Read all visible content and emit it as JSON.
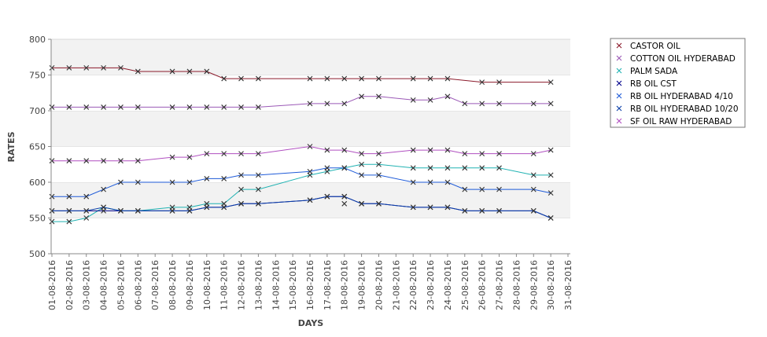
{
  "chart_data": {
    "type": "line",
    "xlabel": "DAYS",
    "ylabel": "RATES",
    "ylim": [
      500,
      800
    ],
    "yticks": [
      500,
      550,
      600,
      650,
      700,
      750,
      800
    ],
    "grid": "alternating horizontal bands",
    "legend_position": "right",
    "x": [
      "01-08-2016",
      "02-08-2016",
      "03-08-2016",
      "04-08-2016",
      "05-08-2016",
      "06-08-2016",
      "07-08-2016",
      "08-08-2016",
      "09-08-2016",
      "10-08-2016",
      "11-08-2016",
      "12-08-2016",
      "13-08-2016",
      "14-08-2016",
      "15-08-2016",
      "16-08-2016",
      "17-08-2016",
      "18-08-2016",
      "19-08-2016",
      "20-08-2016",
      "21-08-2016",
      "22-08-2016",
      "23-08-2016",
      "24-08-2016",
      "25-08-2016",
      "26-08-2016",
      "27-08-2016",
      "28-08-2016",
      "29-08-2016",
      "30-08-2016",
      "31-08-2016"
    ],
    "series": [
      {
        "name": "CASTOR OIL",
        "color": "#8b1a2b",
        "points": [
          [
            "01-08-2016",
            760
          ],
          [
            "02-08-2016",
            760
          ],
          [
            "03-08-2016",
            760
          ],
          [
            "04-08-2016",
            760
          ],
          [
            "05-08-2016",
            760
          ],
          [
            "06-08-2016",
            755
          ],
          [
            "08-08-2016",
            755
          ],
          [
            "09-08-2016",
            755
          ],
          [
            "10-08-2016",
            755
          ],
          [
            "11-08-2016",
            745
          ],
          [
            "12-08-2016",
            745
          ],
          [
            "13-08-2016",
            745
          ],
          [
            "16-08-2016",
            745
          ],
          [
            "17-08-2016",
            745
          ],
          [
            "18-08-2016",
            745
          ],
          [
            "19-08-2016",
            745
          ],
          [
            "20-08-2016",
            745
          ],
          [
            "22-08-2016",
            745
          ],
          [
            "23-08-2016",
            745
          ],
          [
            "24-08-2016",
            745
          ],
          [
            "26-08-2016",
            740
          ],
          [
            "27-08-2016",
            740
          ],
          [
            "30-08-2016",
            740
          ]
        ]
      },
      {
        "name": "COTTON OIL HYDERABAD",
        "color": "#9b59b6",
        "points": [
          [
            "01-08-2016",
            705
          ],
          [
            "02-08-2016",
            705
          ],
          [
            "03-08-2016",
            705
          ],
          [
            "04-08-2016",
            705
          ],
          [
            "05-08-2016",
            705
          ],
          [
            "06-08-2016",
            705
          ],
          [
            "08-08-2016",
            705
          ],
          [
            "09-08-2016",
            705
          ],
          [
            "10-08-2016",
            705
          ],
          [
            "11-08-2016",
            705
          ],
          [
            "12-08-2016",
            705
          ],
          [
            "13-08-2016",
            705
          ],
          [
            "16-08-2016",
            710
          ],
          [
            "17-08-2016",
            710
          ],
          [
            "18-08-2016",
            710
          ],
          [
            "19-08-2016",
            720
          ],
          [
            "20-08-2016",
            720
          ],
          [
            "22-08-2016",
            715
          ],
          [
            "23-08-2016",
            715
          ],
          [
            "24-08-2016",
            720
          ],
          [
            "25-08-2016",
            710
          ],
          [
            "26-08-2016",
            710
          ],
          [
            "27-08-2016",
            710
          ],
          [
            "29-08-2016",
            710
          ],
          [
            "30-08-2016",
            710
          ]
        ]
      },
      {
        "name": "PALM SADA",
        "color": "#20b2b2",
        "points": [
          [
            "01-08-2016",
            545
          ],
          [
            "02-08-2016",
            545
          ],
          [
            "03-08-2016",
            550
          ],
          [
            "04-08-2016",
            565
          ],
          [
            "05-08-2016",
            560
          ],
          [
            "06-08-2016",
            560
          ],
          [
            "08-08-2016",
            565
          ],
          [
            "09-08-2016",
            565
          ],
          [
            "10-08-2016",
            570
          ],
          [
            "11-08-2016",
            570
          ],
          [
            "12-08-2016",
            590
          ],
          [
            "13-08-2016",
            590
          ],
          [
            "16-08-2016",
            610
          ],
          [
            "17-08-2016",
            615
          ],
          [
            "18-08-2016",
            620
          ],
          [
            "19-08-2016",
            625
          ],
          [
            "20-08-2016",
            625
          ],
          [
            "22-08-2016",
            620
          ],
          [
            "23-08-2016",
            620
          ],
          [
            "24-08-2016",
            620
          ],
          [
            "25-08-2016",
            620
          ],
          [
            "26-08-2016",
            620
          ],
          [
            "27-08-2016",
            620
          ],
          [
            "29-08-2016",
            610
          ],
          [
            "30-08-2016",
            610
          ]
        ]
      },
      {
        "name": "RB OIL CST",
        "color": "#00008b",
        "points": [
          [
            "01-08-2016",
            560
          ],
          [
            "02-08-2016",
            560
          ],
          [
            "03-08-2016",
            560
          ],
          [
            "04-08-2016",
            560
          ],
          [
            "05-08-2016",
            560
          ],
          [
            "06-08-2016",
            560
          ],
          [
            "08-08-2016",
            560
          ],
          [
            "09-08-2016",
            560
          ],
          [
            "10-08-2016",
            565
          ],
          [
            "11-08-2016",
            565
          ],
          [
            "12-08-2016",
            570
          ],
          [
            "13-08-2016",
            570
          ],
          [
            "16-08-2016",
            575
          ],
          [
            "17-08-2016",
            580
          ],
          [
            "18-08-2016",
            580
          ],
          [
            "19-08-2016",
            570
          ],
          [
            "20-08-2016",
            570
          ],
          [
            "22-08-2016",
            565
          ],
          [
            "23-08-2016",
            565
          ],
          [
            "24-08-2016",
            565
          ],
          [
            "25-08-2016",
            560
          ],
          [
            "26-08-2016",
            560
          ],
          [
            "27-08-2016",
            560
          ],
          [
            "29-08-2016",
            560
          ],
          [
            "30-08-2016",
            550
          ]
        ]
      },
      {
        "name": "RB OIL HYDERABAD  4/10",
        "color": "#1f5bd8",
        "points": [
          [
            "01-08-2016",
            580
          ],
          [
            "02-08-2016",
            580
          ],
          [
            "03-08-2016",
            580
          ],
          [
            "04-08-2016",
            590
          ],
          [
            "05-08-2016",
            600
          ],
          [
            "06-08-2016",
            600
          ],
          [
            "08-08-2016",
            600
          ],
          [
            "09-08-2016",
            600
          ],
          [
            "10-08-2016",
            605
          ],
          [
            "11-08-2016",
            605
          ],
          [
            "12-08-2016",
            610
          ],
          [
            "13-08-2016",
            610
          ],
          [
            "16-08-2016",
            615
          ],
          [
            "17-08-2016",
            620
          ],
          [
            "18-08-2016",
            620
          ],
          [
            "19-08-2016",
            610
          ],
          [
            "20-08-2016",
            610
          ],
          [
            "22-08-2016",
            600
          ],
          [
            "23-08-2016",
            600
          ],
          [
            "24-08-2016",
            600
          ],
          [
            "25-08-2016",
            590
          ],
          [
            "26-08-2016",
            590
          ],
          [
            "27-08-2016",
            590
          ],
          [
            "29-08-2016",
            590
          ],
          [
            "30-08-2016",
            585
          ]
        ]
      },
      {
        "name": "RB OIL HYDERABAD 10/20",
        "color": "#0b3fa8",
        "points": [
          [
            "01-08-2016",
            560
          ],
          [
            "02-08-2016",
            560
          ],
          [
            "03-08-2016",
            560
          ],
          [
            "04-08-2016",
            565
          ],
          [
            "05-08-2016",
            560
          ],
          [
            "06-08-2016",
            560
          ],
          [
            "08-08-2016",
            560
          ],
          [
            "09-08-2016",
            560
          ],
          [
            "10-08-2016",
            565
          ],
          [
            "11-08-2016",
            565
          ],
          [
            "12-08-2016",
            570
          ],
          [
            "13-08-2016",
            570
          ],
          [
            "16-08-2016",
            575
          ],
          [
            "17-08-2016",
            580
          ],
          [
            "18-08-2016",
            580
          ],
          [
            "19-08-2016",
            570
          ],
          [
            "20-08-2016",
            570
          ],
          [
            "22-08-2016",
            565
          ],
          [
            "23-08-2016",
            565
          ],
          [
            "24-08-2016",
            565
          ],
          [
            "25-08-2016",
            560
          ],
          [
            "26-08-2016",
            560
          ],
          [
            "27-08-2016",
            560
          ],
          [
            "29-08-2016",
            560
          ],
          [
            "30-08-2016",
            550
          ]
        ]
      },
      {
        "name": "SF OIL RAW HYDERABAD",
        "color": "#b04fc0",
        "points": [
          [
            "01-08-2016",
            630
          ],
          [
            "02-08-2016",
            630
          ],
          [
            "03-08-2016",
            630
          ],
          [
            "04-08-2016",
            630
          ],
          [
            "05-08-2016",
            630
          ],
          [
            "06-08-2016",
            630
          ],
          [
            "08-08-2016",
            635
          ],
          [
            "09-08-2016",
            635
          ],
          [
            "10-08-2016",
            640
          ],
          [
            "11-08-2016",
            640
          ],
          [
            "12-08-2016",
            640
          ],
          [
            "13-08-2016",
            640
          ],
          [
            "16-08-2016",
            650
          ],
          [
            "17-08-2016",
            645
          ],
          [
            "18-08-2016",
            645
          ],
          [
            "19-08-2016",
            640
          ],
          [
            "20-08-2016",
            640
          ],
          [
            "22-08-2016",
            645
          ],
          [
            "23-08-2016",
            645
          ],
          [
            "24-08-2016",
            645
          ],
          [
            "25-08-2016",
            640
          ],
          [
            "26-08-2016",
            640
          ],
          [
            "27-08-2016",
            640
          ],
          [
            "29-08-2016",
            640
          ],
          [
            "30-08-2016",
            645
          ]
        ]
      }
    ],
    "extra_markers": [
      [
        "18-08-2016",
        570
      ]
    ]
  }
}
